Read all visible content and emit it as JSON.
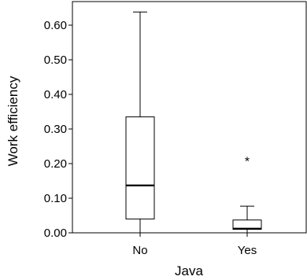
{
  "chart_data": {
    "type": "boxplot",
    "xlabel": "Java",
    "ylabel": "Work efficiency",
    "ylim": [
      0,
      0.65
    ],
    "yticks": [
      "0.00",
      "0.10",
      "0.20",
      "0.30",
      "0.40",
      "0.50",
      "0.60"
    ],
    "grid": false,
    "categories": [
      "No",
      "Yes"
    ],
    "boxes": [
      {
        "category": "No",
        "min": 0.0,
        "q1": 0.04,
        "median": 0.137,
        "q3": 0.335,
        "max": 0.638,
        "outliers": []
      },
      {
        "category": "Yes",
        "min": 0.0,
        "q1": 0.01,
        "median": 0.012,
        "q3": 0.037,
        "max": 0.077,
        "outliers": [
          0.215
        ]
      }
    ],
    "outlier_marker": "*"
  }
}
